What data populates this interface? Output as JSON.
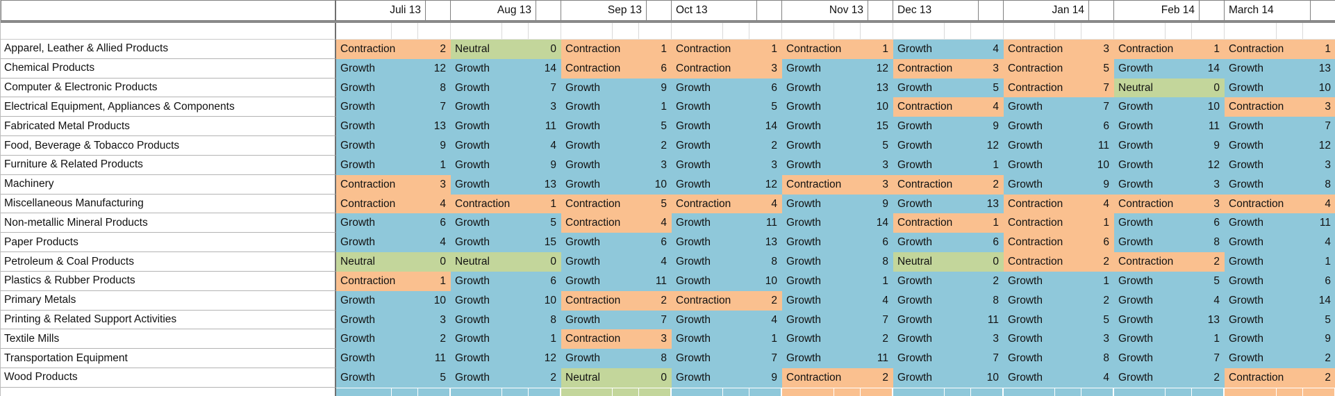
{
  "sheet": {
    "kind": "excel-like-table",
    "status_colors": {
      "Growth": "#8FC8DA",
      "Contraction": "#FAC08F",
      "Neutral": "#C3D69B"
    },
    "grid_colors": {
      "header_border": "#808080",
      "pane_divider": "#8a8a8a",
      "product_border": "#b3b3b3",
      "light_gridline": "#d9d9d9"
    }
  },
  "columns": {
    "months": [
      "Juli 13",
      "Aug 13",
      "Sep 13",
      "Oct 13",
      "Nov 13",
      "Dec 13",
      "Jan 14",
      "Feb 14",
      "March 14"
    ],
    "header_align": [
      "right",
      "right",
      "right",
      "left",
      "right",
      "left",
      "right",
      "right",
      "left"
    ]
  },
  "rows": [
    {
      "product": "Apparel, Leather & Allied Products",
      "cells": [
        {
          "status": "Contraction",
          "value": 2
        },
        {
          "status": "Neutral",
          "value": 0
        },
        {
          "status": "Contraction",
          "value": 1
        },
        {
          "status": "Contraction",
          "value": 1
        },
        {
          "status": "Contraction",
          "value": 1
        },
        {
          "status": "Growth",
          "value": 4
        },
        {
          "status": "Contraction",
          "value": 3
        },
        {
          "status": "Contraction",
          "value": 1
        },
        {
          "status": "Contraction",
          "value": 1
        }
      ]
    },
    {
      "product": "Chemical Products",
      "cells": [
        {
          "status": "Growth",
          "value": 12
        },
        {
          "status": "Growth",
          "value": 14
        },
        {
          "status": "Contraction",
          "value": 6
        },
        {
          "status": "Contraction",
          "value": 3
        },
        {
          "status": "Growth",
          "value": 12
        },
        {
          "status": "Contraction",
          "value": 3
        },
        {
          "status": "Contraction",
          "value": 5
        },
        {
          "status": "Growth",
          "value": 14
        },
        {
          "status": "Growth",
          "value": 13
        }
      ]
    },
    {
      "product": "Computer & Electronic Products",
      "cells": [
        {
          "status": "Growth",
          "value": 8
        },
        {
          "status": "Growth",
          "value": 7
        },
        {
          "status": "Growth",
          "value": 9
        },
        {
          "status": "Growth",
          "value": 6
        },
        {
          "status": "Growth",
          "value": 13
        },
        {
          "status": "Growth",
          "value": 5
        },
        {
          "status": "Contraction",
          "value": 7
        },
        {
          "status": "Neutral",
          "value": 0
        },
        {
          "status": "Growth",
          "value": 10
        }
      ]
    },
    {
      "product": "Electrical Equipment, Appliances & Components",
      "cells": [
        {
          "status": "Growth",
          "value": 7
        },
        {
          "status": "Growth",
          "value": 3
        },
        {
          "status": "Growth",
          "value": 1
        },
        {
          "status": "Growth",
          "value": 5
        },
        {
          "status": "Growth",
          "value": 10
        },
        {
          "status": "Contraction",
          "value": 4
        },
        {
          "status": "Growth",
          "value": 7
        },
        {
          "status": "Growth",
          "value": 10
        },
        {
          "status": "Contraction",
          "value": 3
        }
      ]
    },
    {
      "product": "Fabricated Metal Products",
      "cells": [
        {
          "status": "Growth",
          "value": 13
        },
        {
          "status": "Growth",
          "value": 11
        },
        {
          "status": "Growth",
          "value": 5
        },
        {
          "status": "Growth",
          "value": 14
        },
        {
          "status": "Growth",
          "value": 15
        },
        {
          "status": "Growth",
          "value": 9
        },
        {
          "status": "Growth",
          "value": 6
        },
        {
          "status": "Growth",
          "value": 11
        },
        {
          "status": "Growth",
          "value": 7
        }
      ]
    },
    {
      "product": "Food, Beverage & Tobacco Products",
      "cells": [
        {
          "status": "Growth",
          "value": 9
        },
        {
          "status": "Growth",
          "value": 4
        },
        {
          "status": "Growth",
          "value": 2
        },
        {
          "status": "Growth",
          "value": 2
        },
        {
          "status": "Growth",
          "value": 5
        },
        {
          "status": "Growth",
          "value": 12
        },
        {
          "status": "Growth",
          "value": 11
        },
        {
          "status": "Growth",
          "value": 9
        },
        {
          "status": "Growth",
          "value": 12
        }
      ]
    },
    {
      "product": "Furniture & Related Products",
      "cells": [
        {
          "status": "Growth",
          "value": 1
        },
        {
          "status": "Growth",
          "value": 9
        },
        {
          "status": "Growth",
          "value": 3
        },
        {
          "status": "Growth",
          "value": 3
        },
        {
          "status": "Growth",
          "value": 3
        },
        {
          "status": "Growth",
          "value": 1
        },
        {
          "status": "Growth",
          "value": 10
        },
        {
          "status": "Growth",
          "value": 12
        },
        {
          "status": "Growth",
          "value": 3
        }
      ]
    },
    {
      "product": "Machinery",
      "cells": [
        {
          "status": "Contraction",
          "value": 3
        },
        {
          "status": "Growth",
          "value": 13
        },
        {
          "status": "Growth",
          "value": 10
        },
        {
          "status": "Growth",
          "value": 12
        },
        {
          "status": "Contraction",
          "value": 3
        },
        {
          "status": "Contraction",
          "value": 2
        },
        {
          "status": "Growth",
          "value": 9
        },
        {
          "status": "Growth",
          "value": 3
        },
        {
          "status": "Growth",
          "value": 8
        }
      ]
    },
    {
      "product": "Miscellaneous Manufacturing",
      "cells": [
        {
          "status": "Contraction",
          "value": 4
        },
        {
          "status": "Contraction",
          "value": 1
        },
        {
          "status": "Contraction",
          "value": 5
        },
        {
          "status": "Contraction",
          "value": 4
        },
        {
          "status": "Growth",
          "value": 9
        },
        {
          "status": "Growth",
          "value": 13
        },
        {
          "status": "Contraction",
          "value": 4
        },
        {
          "status": "Contraction",
          "value": 3
        },
        {
          "status": "Contraction",
          "value": 4
        }
      ]
    },
    {
      "product": "Non-metallic Mineral Products",
      "cells": [
        {
          "status": "Growth",
          "value": 6
        },
        {
          "status": "Growth",
          "value": 5
        },
        {
          "status": "Contraction",
          "value": 4
        },
        {
          "status": "Growth",
          "value": 11
        },
        {
          "status": "Growth",
          "value": 14
        },
        {
          "status": "Contraction",
          "value": 1
        },
        {
          "status": "Contraction",
          "value": 1
        },
        {
          "status": "Growth",
          "value": 6
        },
        {
          "status": "Growth",
          "value": 11
        }
      ]
    },
    {
      "product": "Paper Products",
      "cells": [
        {
          "status": "Growth",
          "value": 4
        },
        {
          "status": "Growth",
          "value": 15
        },
        {
          "status": "Growth",
          "value": 6
        },
        {
          "status": "Growth",
          "value": 13
        },
        {
          "status": "Growth",
          "value": 6
        },
        {
          "status": "Growth",
          "value": 6
        },
        {
          "status": "Contraction",
          "value": 6
        },
        {
          "status": "Growth",
          "value": 8
        },
        {
          "status": "Growth",
          "value": 4
        }
      ]
    },
    {
      "product": "Petroleum & Coal Products",
      "cells": [
        {
          "status": "Neutral",
          "value": 0
        },
        {
          "status": "Neutral",
          "value": 0
        },
        {
          "status": "Growth",
          "value": 4
        },
        {
          "status": "Growth",
          "value": 8
        },
        {
          "status": "Growth",
          "value": 8
        },
        {
          "status": "Neutral",
          "value": 0
        },
        {
          "status": "Contraction",
          "value": 2
        },
        {
          "status": "Contraction",
          "value": 2
        },
        {
          "status": "Growth",
          "value": 1
        }
      ]
    },
    {
      "product": "Plastics & Rubber Products",
      "cells": [
        {
          "status": "Contraction",
          "value": 1
        },
        {
          "status": "Growth",
          "value": 6
        },
        {
          "status": "Growth",
          "value": 11
        },
        {
          "status": "Growth",
          "value": 10
        },
        {
          "status": "Growth",
          "value": 1
        },
        {
          "status": "Growth",
          "value": 2
        },
        {
          "status": "Growth",
          "value": 1
        },
        {
          "status": "Growth",
          "value": 5
        },
        {
          "status": "Growth",
          "value": 6
        }
      ]
    },
    {
      "product": "Primary Metals",
      "cells": [
        {
          "status": "Growth",
          "value": 10
        },
        {
          "status": "Growth",
          "value": 10
        },
        {
          "status": "Contraction",
          "value": 2
        },
        {
          "status": "Contraction",
          "value": 2
        },
        {
          "status": "Growth",
          "value": 4
        },
        {
          "status": "Growth",
          "value": 8
        },
        {
          "status": "Growth",
          "value": 2
        },
        {
          "status": "Growth",
          "value": 4
        },
        {
          "status": "Growth",
          "value": 14
        }
      ]
    },
    {
      "product": "Printing & Related Support Activities",
      "cells": [
        {
          "status": "Growth",
          "value": 3
        },
        {
          "status": "Growth",
          "value": 8
        },
        {
          "status": "Growth",
          "value": 7
        },
        {
          "status": "Growth",
          "value": 4
        },
        {
          "status": "Growth",
          "value": 7
        },
        {
          "status": "Growth",
          "value": 11
        },
        {
          "status": "Growth",
          "value": 5
        },
        {
          "status": "Growth",
          "value": 13
        },
        {
          "status": "Growth",
          "value": 5
        }
      ]
    },
    {
      "product": "Textile Mills",
      "cells": [
        {
          "status": "Growth",
          "value": 2
        },
        {
          "status": "Growth",
          "value": 1
        },
        {
          "status": "Contraction",
          "value": 3
        },
        {
          "status": "Growth",
          "value": 1
        },
        {
          "status": "Growth",
          "value": 2
        },
        {
          "status": "Growth",
          "value": 3
        },
        {
          "status": "Growth",
          "value": 3
        },
        {
          "status": "Growth",
          "value": 1
        },
        {
          "status": "Growth",
          "value": 9
        }
      ]
    },
    {
      "product": "Transportation Equipment",
      "cells": [
        {
          "status": "Growth",
          "value": 11
        },
        {
          "status": "Growth",
          "value": 12
        },
        {
          "status": "Growth",
          "value": 8
        },
        {
          "status": "Growth",
          "value": 7
        },
        {
          "status": "Growth",
          "value": 11
        },
        {
          "status": "Growth",
          "value": 7
        },
        {
          "status": "Growth",
          "value": 8
        },
        {
          "status": "Growth",
          "value": 7
        },
        {
          "status": "Growth",
          "value": 2
        }
      ]
    },
    {
      "product": "Wood Products",
      "cells": [
        {
          "status": "Growth",
          "value": 5
        },
        {
          "status": "Growth",
          "value": 2
        },
        {
          "status": "Neutral",
          "value": 0
        },
        {
          "status": "Growth",
          "value": 9
        },
        {
          "status": "Contraction",
          "value": 2
        },
        {
          "status": "Growth",
          "value": 10
        },
        {
          "status": "Growth",
          "value": 4
        },
        {
          "status": "Growth",
          "value": 2
        },
        {
          "status": "Contraction",
          "value": 2
        }
      ]
    }
  ]
}
